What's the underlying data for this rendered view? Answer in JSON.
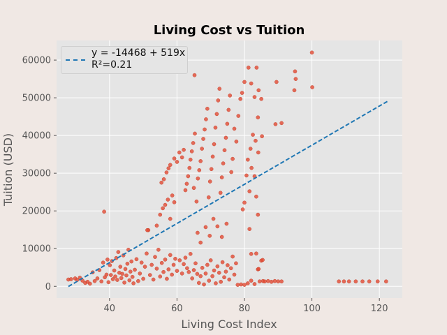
{
  "chart_data": {
    "type": "scatter",
    "title": "Living Cost vs Tuition",
    "xlabel": "Living Cost Index",
    "ylabel": "Tuition (USD)",
    "xlim": [
      24.3,
      126.8
    ],
    "ylim": [
      -3100,
      65200
    ],
    "xticks": [
      40,
      60,
      80,
      100,
      120
    ],
    "yticks": [
      0,
      10000,
      20000,
      30000,
      40000,
      50000,
      60000
    ],
    "xtick_labels": [
      "40",
      "60",
      "80",
      "100",
      "120"
    ],
    "ytick_labels": [
      "0",
      "10000",
      "20000",
      "30000",
      "40000",
      "50000",
      "60000"
    ],
    "grid": true,
    "legend_position": "top-left",
    "colors": {
      "points": "#e24a33",
      "fit": "#1f77b4",
      "plot_bg": "#e5e5e5",
      "figure_bg": "#f0e8e4"
    },
    "fit": {
      "label_line1": "y = -14468 + 519x",
      "label_line2": "R²=0.21",
      "intercept": -14468,
      "slope": 519,
      "x_range": [
        27.8,
        122.4
      ]
    },
    "series": [
      {
        "points": [
          [
            27.8,
            1800
          ],
          [
            28.6,
            1900
          ],
          [
            29.8,
            2100
          ],
          [
            30.4,
            1700
          ],
          [
            31.2,
            2300
          ],
          [
            32.0,
            1500
          ],
          [
            32.8,
            900
          ],
          [
            33.5,
            1200
          ],
          [
            34.2,
            700
          ],
          [
            35.0,
            3700
          ],
          [
            35.6,
            1400
          ],
          [
            36.4,
            2100
          ],
          [
            37.0,
            4300
          ],
          [
            37.6,
            1300
          ],
          [
            38.1,
            6300
          ],
          [
            38.4,
            19800
          ],
          [
            38.6,
            2400
          ],
          [
            39.1,
            3100
          ],
          [
            39.4,
            7100
          ],
          [
            39.7,
            1100
          ],
          [
            40.1,
            5600
          ],
          [
            40.4,
            3000
          ],
          [
            40.7,
            6700
          ],
          [
            41.0,
            1900
          ],
          [
            41.4,
            4200
          ],
          [
            41.7,
            2600
          ],
          [
            42.0,
            7500
          ],
          [
            42.3,
            1700
          ],
          [
            42.6,
            9100
          ],
          [
            42.9,
            3600
          ],
          [
            43.2,
            5200
          ],
          [
            43.5,
            2200
          ],
          [
            43.8,
            3300
          ],
          [
            44.1,
            8200
          ],
          [
            44.4,
            1000
          ],
          [
            44.7,
            4600
          ],
          [
            45.0,
            2900
          ],
          [
            45.3,
            6000
          ],
          [
            45.6,
            9700
          ],
          [
            45.9,
            1600
          ],
          [
            46.2,
            3900
          ],
          [
            46.5,
            6600
          ],
          [
            46.8,
            2500
          ],
          [
            47.1,
            800
          ],
          [
            47.5,
            4400
          ],
          [
            48.0,
            7200
          ],
          [
            48.5,
            1400
          ],
          [
            49.0,
            3400
          ],
          [
            49.5,
            6300
          ],
          [
            50.0,
            2000
          ],
          [
            50.5,
            5200
          ],
          [
            51.0,
            8700
          ],
          [
            51.5,
            14900
          ],
          [
            52.0,
            3000
          ],
          [
            52.5,
            5700
          ],
          [
            53.0,
            1800
          ],
          [
            53.5,
            7800
          ],
          [
            54.0,
            4700
          ],
          [
            54.5,
            9700
          ],
          [
            55.0,
            2600
          ],
          [
            55.5,
            6200
          ],
          [
            56.0,
            3800
          ],
          [
            56.5,
            7100
          ],
          [
            57.0,
            2000
          ],
          [
            57.5,
            4500
          ],
          [
            58.0,
            8300
          ],
          [
            58.5,
            3100
          ],
          [
            59.0,
            5700
          ],
          [
            59.5,
            7300
          ],
          [
            60.0,
            4100
          ],
          [
            60.8,
            6900
          ],
          [
            61.5,
            3400
          ],
          [
            62.0,
            5900
          ],
          [
            62.5,
            7600
          ],
          [
            63.0,
            4800
          ],
          [
            63.5,
            3800
          ],
          [
            64.0,
            8600
          ],
          [
            64.5,
            2100
          ],
          [
            65.0,
            4300
          ],
          [
            65.5,
            6100
          ],
          [
            66.0,
            3300
          ],
          [
            66.5,
            900
          ],
          [
            67.0,
            2700
          ],
          [
            67.5,
            4900
          ],
          [
            68.0,
            500
          ],
          [
            68.5,
            3400
          ],
          [
            69.0,
            5700
          ],
          [
            69.5,
            1500
          ],
          [
            70.0,
            6900
          ],
          [
            70.5,
            2700
          ],
          [
            71.0,
            4200
          ],
          [
            71.5,
            800
          ],
          [
            72.0,
            5300
          ],
          [
            72.5,
            3600
          ],
          [
            73.0,
            1200
          ],
          [
            73.5,
            6400
          ],
          [
            74.0,
            2400
          ],
          [
            74.5,
            3900
          ],
          [
            75.0,
            5600
          ],
          [
            75.5,
            1800
          ],
          [
            76.0,
            4800
          ],
          [
            76.5,
            7900
          ],
          [
            77.0,
            3100
          ],
          [
            77.5,
            6100
          ],
          [
            78.0,
            400
          ],
          [
            79.0,
            500
          ],
          [
            80.0,
            400
          ],
          [
            81.0,
            800
          ],
          [
            82.0,
            1500
          ],
          [
            83.0,
            600
          ],
          [
            84.0,
            4500
          ],
          [
            84.5,
            1300
          ],
          [
            85.0,
            6800
          ],
          [
            85.5,
            1400
          ],
          [
            86.0,
            1300
          ],
          [
            87.0,
            1400
          ],
          [
            88.0,
            1200
          ],
          [
            89.0,
            1400
          ],
          [
            90.0,
            1300
          ],
          [
            91.0,
            1300
          ],
          [
            108.0,
            1300
          ],
          [
            109.5,
            1300
          ],
          [
            111.0,
            1300
          ],
          [
            113.0,
            1300
          ],
          [
            115.0,
            1300
          ],
          [
            117.0,
            1300
          ],
          [
            119.5,
            1300
          ],
          [
            122.0,
            1300
          ],
          [
            51.2,
            14900
          ],
          [
            54.0,
            16100
          ],
          [
            55.0,
            19000
          ],
          [
            55.8,
            20700
          ],
          [
            56.5,
            21600
          ],
          [
            57.3,
            23000
          ],
          [
            58.0,
            17900
          ],
          [
            58.6,
            24100
          ],
          [
            59.2,
            22300
          ],
          [
            55.4,
            27500
          ],
          [
            56.1,
            28400
          ],
          [
            56.9,
            30200
          ],
          [
            57.5,
            31300
          ],
          [
            58.0,
            32200
          ],
          [
            59.2,
            33900
          ],
          [
            60.0,
            33000
          ],
          [
            60.7,
            35500
          ],
          [
            61.5,
            34200
          ],
          [
            62.0,
            36200
          ],
          [
            62.5,
            25500
          ],
          [
            62.9,
            27200
          ],
          [
            63.3,
            29200
          ],
          [
            63.7,
            31400
          ],
          [
            64.0,
            33600
          ],
          [
            64.4,
            35800
          ],
          [
            64.8,
            38000
          ],
          [
            65.0,
            26100
          ],
          [
            65.3,
            40500
          ],
          [
            65.8,
            22500
          ],
          [
            66.2,
            28600
          ],
          [
            66.6,
            30800
          ],
          [
            67.0,
            33200
          ],
          [
            67.4,
            36500
          ],
          [
            67.8,
            39100
          ],
          [
            68.2,
            41600
          ],
          [
            68.6,
            44300
          ],
          [
            69.0,
            47100
          ],
          [
            69.4,
            23600
          ],
          [
            69.8,
            27800
          ],
          [
            70.2,
            31100
          ],
          [
            70.6,
            34400
          ],
          [
            71.0,
            37700
          ],
          [
            71.4,
            42100
          ],
          [
            71.8,
            45700
          ],
          [
            72.2,
            49300
          ],
          [
            72.6,
            52400
          ],
          [
            72.9,
            24800
          ],
          [
            73.3,
            28900
          ],
          [
            73.7,
            32600
          ],
          [
            74.1,
            36100
          ],
          [
            74.5,
            39400
          ],
          [
            74.9,
            43100
          ],
          [
            75.3,
            46800
          ],
          [
            75.7,
            50600
          ],
          [
            76.1,
            30300
          ],
          [
            76.5,
            33800
          ],
          [
            77.0,
            41800
          ],
          [
            77.6,
            38400
          ],
          [
            78.2,
            45200
          ],
          [
            78.8,
            49700
          ],
          [
            79.3,
            51300
          ],
          [
            65.2,
            56000
          ],
          [
            66.1,
            14200
          ],
          [
            67.0,
            11600
          ],
          [
            68.5,
            15700
          ],
          [
            69.7,
            13400
          ],
          [
            70.8,
            17900
          ],
          [
            72.0,
            15900
          ],
          [
            73.3,
            13100
          ],
          [
            74.7,
            16600
          ],
          [
            80.0,
            54200
          ],
          [
            81.2,
            58000
          ],
          [
            82.0,
            53800
          ],
          [
            83.0,
            50200
          ],
          [
            83.6,
            58000
          ],
          [
            84.2,
            52000
          ],
          [
            85.0,
            49700
          ],
          [
            84.0,
            44800
          ],
          [
            82.5,
            40200
          ],
          [
            81.8,
            36500
          ],
          [
            81.0,
            33600
          ],
          [
            82.1,
            31400
          ],
          [
            83.3,
            38600
          ],
          [
            84.1,
            35500
          ],
          [
            85.2,
            39800
          ],
          [
            83.0,
            29200
          ],
          [
            81.5,
            25200
          ],
          [
            80.0,
            22200
          ],
          [
            79.5,
            20400
          ],
          [
            83.5,
            23800
          ],
          [
            84.0,
            19000
          ],
          [
            80.6,
            29400
          ],
          [
            81.5,
            15200
          ],
          [
            82.0,
            8600
          ],
          [
            83.5,
            8700
          ],
          [
            84.2,
            4600
          ],
          [
            85.4,
            7000
          ],
          [
            89.5,
            54200
          ],
          [
            91.0,
            43300
          ],
          [
            89.2,
            43000
          ],
          [
            95.0,
            57000
          ],
          [
            95.2,
            55000
          ],
          [
            94.8,
            52000
          ],
          [
            100.0,
            62000
          ],
          [
            100.1,
            52800
          ]
        ]
      }
    ]
  }
}
